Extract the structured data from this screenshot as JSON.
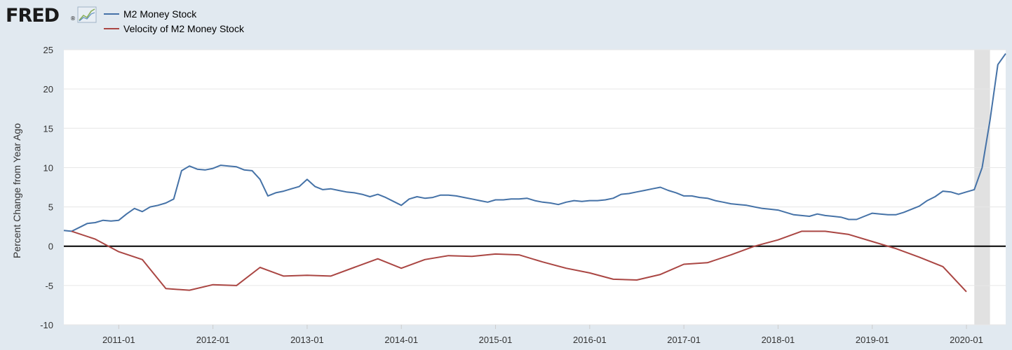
{
  "header": {
    "logo_text": "FRED",
    "logo_mark": "®",
    "logo_icon": "trend-graph-icon"
  },
  "chart_data": {
    "type": "line",
    "xlabel": "",
    "ylabel": "Percent Change from Year Ago",
    "ylim": [
      -10,
      25
    ],
    "yticks": [
      -10,
      -5,
      0,
      5,
      10,
      15,
      20,
      25
    ],
    "xlim": [
      "2010-06",
      "2020-06"
    ],
    "xticks": [
      "2011-01",
      "2012-01",
      "2013-01",
      "2014-01",
      "2015-01",
      "2016-01",
      "2017-01",
      "2018-01",
      "2019-01",
      "2020-01"
    ],
    "grid": "horizontal",
    "zero_line": true,
    "recession_shading": [
      [
        "2020-02",
        "2020-04"
      ]
    ],
    "legend_position": "top-left",
    "series": [
      {
        "name": "M2 Money Stock",
        "color": "#4572a7",
        "points": [
          [
            "2010-06",
            2.0
          ],
          [
            "2010-07",
            1.9
          ],
          [
            "2010-08",
            2.4
          ],
          [
            "2010-09",
            2.9
          ],
          [
            "2010-10",
            3.0
          ],
          [
            "2010-11",
            3.3
          ],
          [
            "2010-12",
            3.2
          ],
          [
            "2011-01",
            3.3
          ],
          [
            "2011-02",
            4.1
          ],
          [
            "2011-03",
            4.8
          ],
          [
            "2011-04",
            4.4
          ],
          [
            "2011-05",
            5.0
          ],
          [
            "2011-06",
            5.2
          ],
          [
            "2011-07",
            5.5
          ],
          [
            "2011-08",
            6.0
          ],
          [
            "2011-09",
            9.6
          ],
          [
            "2011-10",
            10.2
          ],
          [
            "2011-11",
            9.8
          ],
          [
            "2011-12",
            9.7
          ],
          [
            "2012-01",
            9.9
          ],
          [
            "2012-02",
            10.3
          ],
          [
            "2012-03",
            10.2
          ],
          [
            "2012-04",
            10.1
          ],
          [
            "2012-05",
            9.7
          ],
          [
            "2012-06",
            9.6
          ],
          [
            "2012-07",
            8.5
          ],
          [
            "2012-08",
            6.4
          ],
          [
            "2012-09",
            6.8
          ],
          [
            "2012-10",
            7.0
          ],
          [
            "2012-11",
            7.3
          ],
          [
            "2012-12",
            7.6
          ],
          [
            "2013-01",
            8.5
          ],
          [
            "2013-02",
            7.6
          ],
          [
            "2013-03",
            7.2
          ],
          [
            "2013-04",
            7.3
          ],
          [
            "2013-05",
            7.1
          ],
          [
            "2013-06",
            6.9
          ],
          [
            "2013-07",
            6.8
          ],
          [
            "2013-08",
            6.6
          ],
          [
            "2013-09",
            6.3
          ],
          [
            "2013-10",
            6.6
          ],
          [
            "2013-11",
            6.2
          ],
          [
            "2013-12",
            5.7
          ],
          [
            "2014-01",
            5.2
          ],
          [
            "2014-02",
            6.0
          ],
          [
            "2014-03",
            6.3
          ],
          [
            "2014-04",
            6.1
          ],
          [
            "2014-05",
            6.2
          ],
          [
            "2014-06",
            6.5
          ],
          [
            "2014-07",
            6.5
          ],
          [
            "2014-08",
            6.4
          ],
          [
            "2014-09",
            6.2
          ],
          [
            "2014-10",
            6.0
          ],
          [
            "2014-11",
            5.8
          ],
          [
            "2014-12",
            5.6
          ],
          [
            "2015-01",
            5.9
          ],
          [
            "2015-02",
            5.9
          ],
          [
            "2015-03",
            6.0
          ],
          [
            "2015-04",
            6.0
          ],
          [
            "2015-05",
            6.1
          ],
          [
            "2015-06",
            5.8
          ],
          [
            "2015-07",
            5.6
          ],
          [
            "2015-08",
            5.5
          ],
          [
            "2015-09",
            5.3
          ],
          [
            "2015-10",
            5.6
          ],
          [
            "2015-11",
            5.8
          ],
          [
            "2015-12",
            5.7
          ],
          [
            "2016-01",
            5.8
          ],
          [
            "2016-02",
            5.8
          ],
          [
            "2016-03",
            5.9
          ],
          [
            "2016-04",
            6.1
          ],
          [
            "2016-05",
            6.6
          ],
          [
            "2016-06",
            6.7
          ],
          [
            "2016-07",
            6.9
          ],
          [
            "2016-08",
            7.1
          ],
          [
            "2016-09",
            7.3
          ],
          [
            "2016-10",
            7.5
          ],
          [
            "2016-11",
            7.1
          ],
          [
            "2016-12",
            6.8
          ],
          [
            "2017-01",
            6.4
          ],
          [
            "2017-02",
            6.4
          ],
          [
            "2017-03",
            6.2
          ],
          [
            "2017-04",
            6.1
          ],
          [
            "2017-05",
            5.8
          ],
          [
            "2017-06",
            5.6
          ],
          [
            "2017-07",
            5.4
          ],
          [
            "2017-08",
            5.3
          ],
          [
            "2017-09",
            5.2
          ],
          [
            "2017-10",
            5.0
          ],
          [
            "2017-11",
            4.8
          ],
          [
            "2017-12",
            4.7
          ],
          [
            "2018-01",
            4.6
          ],
          [
            "2018-02",
            4.3
          ],
          [
            "2018-03",
            4.0
          ],
          [
            "2018-04",
            3.9
          ],
          [
            "2018-05",
            3.8
          ],
          [
            "2018-06",
            4.1
          ],
          [
            "2018-07",
            3.9
          ],
          [
            "2018-08",
            3.8
          ],
          [
            "2018-09",
            3.7
          ],
          [
            "2018-10",
            3.4
          ],
          [
            "2018-11",
            3.4
          ],
          [
            "2018-12",
            3.8
          ],
          [
            "2019-01",
            4.2
          ],
          [
            "2019-02",
            4.1
          ],
          [
            "2019-03",
            4.0
          ],
          [
            "2019-04",
            4.0
          ],
          [
            "2019-05",
            4.3
          ],
          [
            "2019-06",
            4.7
          ],
          [
            "2019-07",
            5.1
          ],
          [
            "2019-08",
            5.8
          ],
          [
            "2019-09",
            6.3
          ],
          [
            "2019-10",
            7.0
          ],
          [
            "2019-11",
            6.9
          ],
          [
            "2019-12",
            6.6
          ],
          [
            "2020-01",
            6.9
          ],
          [
            "2020-02",
            7.2
          ],
          [
            "2020-03",
            10.0
          ],
          [
            "2020-04",
            16.0
          ],
          [
            "2020-05",
            23.1
          ],
          [
            "2020-06",
            24.5
          ]
        ]
      },
      {
        "name": "Velocity of M2 Money Stock",
        "color": "#aa4643",
        "points": [
          [
            "2010-07",
            1.9
          ],
          [
            "2010-10",
            0.9
          ],
          [
            "2011-01",
            -0.7
          ],
          [
            "2011-04",
            -1.7
          ],
          [
            "2011-07",
            -5.4
          ],
          [
            "2011-10",
            -5.6
          ],
          [
            "2012-01",
            -4.9
          ],
          [
            "2012-04",
            -5.0
          ],
          [
            "2012-07",
            -2.7
          ],
          [
            "2012-10",
            -3.8
          ],
          [
            "2013-01",
            -3.7
          ],
          [
            "2013-04",
            -3.8
          ],
          [
            "2013-07",
            -2.7
          ],
          [
            "2013-10",
            -1.6
          ],
          [
            "2014-01",
            -2.8
          ],
          [
            "2014-04",
            -1.7
          ],
          [
            "2014-07",
            -1.2
          ],
          [
            "2014-10",
            -1.3
          ],
          [
            "2015-01",
            -1.0
          ],
          [
            "2015-04",
            -1.1
          ],
          [
            "2015-07",
            -2.0
          ],
          [
            "2015-10",
            -2.8
          ],
          [
            "2016-01",
            -3.4
          ],
          [
            "2016-04",
            -4.2
          ],
          [
            "2016-07",
            -4.3
          ],
          [
            "2016-10",
            -3.6
          ],
          [
            "2017-01",
            -2.3
          ],
          [
            "2017-04",
            -2.1
          ],
          [
            "2017-07",
            -1.1
          ],
          [
            "2017-10",
            0.0
          ],
          [
            "2018-01",
            0.8
          ],
          [
            "2018-04",
            1.9
          ],
          [
            "2018-07",
            1.9
          ],
          [
            "2018-10",
            1.5
          ],
          [
            "2019-01",
            0.6
          ],
          [
            "2019-04",
            -0.3
          ],
          [
            "2019-07",
            -1.4
          ],
          [
            "2019-10",
            -2.6
          ],
          [
            "2020-01",
            -5.8
          ]
        ]
      }
    ]
  }
}
